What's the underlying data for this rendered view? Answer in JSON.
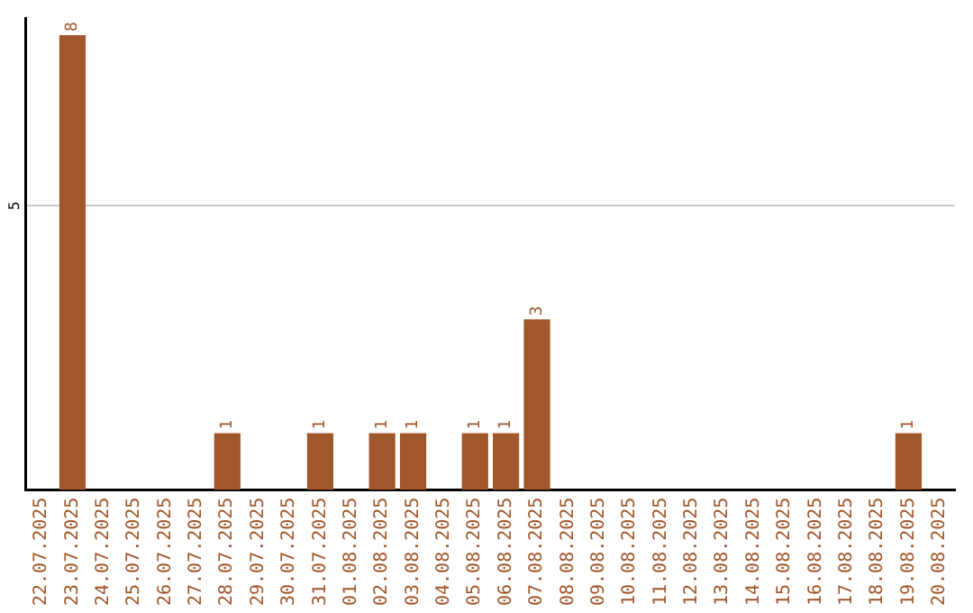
{
  "chart_data": {
    "type": "bar",
    "categories": [
      "22.07.2025",
      "23.07.2025",
      "24.07.2025",
      "25.07.2025",
      "26.07.2025",
      "27.07.2025",
      "28.07.2025",
      "29.07.2025",
      "30.07.2025",
      "31.07.2025",
      "01.08.2025",
      "02.08.2025",
      "03.08.2025",
      "04.08.2025",
      "05.08.2025",
      "06.08.2025",
      "07.08.2025",
      "08.08.2025",
      "09.08.2025",
      "10.08.2025",
      "11.08.2025",
      "12.08.2025",
      "13.08.2025",
      "14.08.2025",
      "15.08.2025",
      "16.08.2025",
      "17.08.2025",
      "18.08.2025",
      "19.08.2025",
      "20.08.2025"
    ],
    "values": [
      0,
      8,
      0,
      0,
      0,
      0,
      1,
      0,
      0,
      1,
      0,
      1,
      1,
      0,
      1,
      1,
      3,
      0,
      0,
      0,
      0,
      0,
      0,
      0,
      0,
      0,
      0,
      0,
      1,
      0
    ],
    "value_labels": [
      null,
      "8",
      null,
      null,
      null,
      null,
      "1",
      null,
      null,
      "1",
      null,
      "1",
      "1",
      null,
      "1",
      "1",
      "3",
      null,
      null,
      null,
      null,
      null,
      null,
      null,
      null,
      null,
      null,
      null,
      "1",
      null
    ],
    "color": "#a0572b",
    "ylim": [
      0,
      8.3
    ],
    "yticks": [
      5
    ],
    "grid": "y",
    "legend": false
  }
}
